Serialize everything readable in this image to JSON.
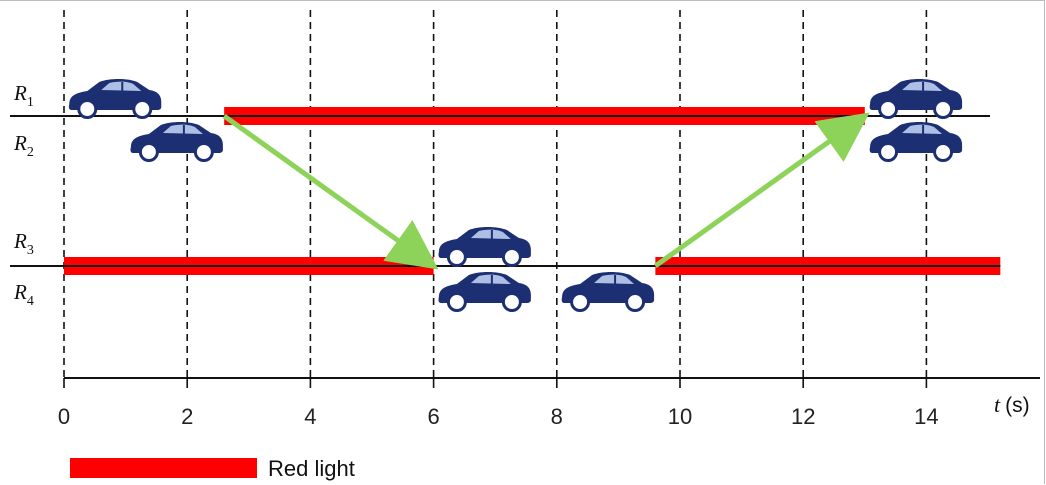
{
  "routes": [
    {
      "main": "R",
      "sub": "1"
    },
    {
      "main": "R",
      "sub": "2"
    },
    {
      "main": "R",
      "sub": "3"
    },
    {
      "main": "R",
      "sub": "4"
    }
  ],
  "axis": {
    "variable": "t",
    "unit": "(s)",
    "ticks": [
      "0",
      "2",
      "4",
      "6",
      "8",
      "10",
      "12",
      "14"
    ]
  },
  "legend": {
    "label": "Red light",
    "color": "#ff0000"
  },
  "colors": {
    "red_light": "#ff0000",
    "arrow": "#8dd35a",
    "car_body": "#1c2f73",
    "car_window": "#aebfe6"
  },
  "red_intervals": [
    {
      "lane": "upper",
      "start_s": 2.6,
      "end_s": 13.0
    },
    {
      "lane": "lower",
      "start_s": 0.0,
      "end_s": 6.0
    },
    {
      "lane": "lower",
      "start_s": 9.6,
      "end_s": 15.2
    }
  ],
  "cars": [
    {
      "route": "R1",
      "time_s": 0.8
    },
    {
      "route": "R2",
      "time_s": 1.8
    },
    {
      "route": "R3",
      "time_s": 6.8
    },
    {
      "route": "R4",
      "time_s": 6.8
    },
    {
      "route": "R4",
      "time_s": 8.8
    },
    {
      "route": "R1",
      "time_s": 13.8
    },
    {
      "route": "R2",
      "time_s": 13.8
    }
  ],
  "arrows": [
    {
      "from_time_s": 2.6,
      "from_lane": "upper",
      "to_time_s": 6.0,
      "to_lane": "lower"
    },
    {
      "from_time_s": 9.6,
      "from_lane": "lower",
      "to_time_s": 13.0,
      "to_lane": "upper"
    }
  ]
}
